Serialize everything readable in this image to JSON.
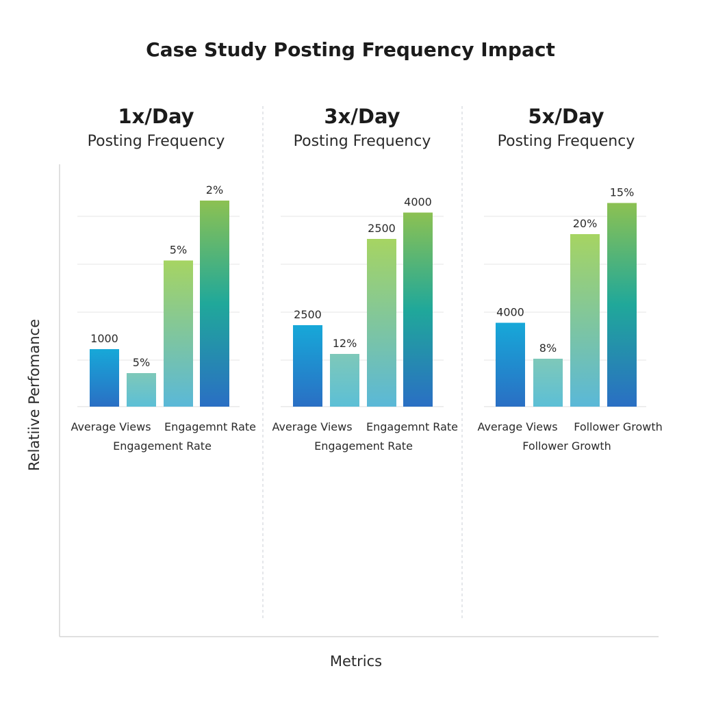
{
  "chart_data": {
    "type": "bar",
    "title": "Case Study Posting Frequency Impact",
    "xlabel": "Metrics",
    "ylabel": "Relatiive Perfomance",
    "grid": true,
    "panels": [
      {
        "heading": "1x/Day",
        "subheading": "Posting Frequency",
        "bars": [
          {
            "label": "1000",
            "value": 1000
          },
          {
            "label": "5%",
            "value": 5
          },
          {
            "label": "5%",
            "value": 5
          },
          {
            "label": "2%",
            "value": 2
          }
        ],
        "bar_heights_relative": [
          0.24,
          0.14,
          0.61,
          0.86
        ],
        "category_labels_row1": [
          "Average Views",
          "Engagemnt Rate"
        ],
        "category_labels_row2": [
          "Engagement Rate"
        ]
      },
      {
        "heading": "3x/Day",
        "subheading": "Posting Frequency",
        "bars": [
          {
            "label": "2500",
            "value": 2500
          },
          {
            "label": "12%",
            "value": 12
          },
          {
            "label": "2500",
            "value": 2500
          },
          {
            "label": "4000",
            "value": 4000
          }
        ],
        "bar_heights_relative": [
          0.34,
          0.22,
          0.7,
          0.81
        ],
        "category_labels_row1": [
          "Average Views",
          "Engagemnt Rate"
        ],
        "category_labels_row2": [
          "Engagement Rate"
        ]
      },
      {
        "heading": "5x/Day",
        "subheading": "Posting Frequency",
        "bars": [
          {
            "label": "4000",
            "value": 4000
          },
          {
            "label": "8%",
            "value": 8
          },
          {
            "label": "20%",
            "value": 20
          },
          {
            "label": "15%",
            "value": 15
          }
        ],
        "bar_heights_relative": [
          0.35,
          0.2,
          0.72,
          0.85
        ],
        "category_labels_row1": [
          "Average Views",
          "Follower Growth"
        ],
        "category_labels_row2": [
          "Follower Growth"
        ]
      }
    ]
  }
}
